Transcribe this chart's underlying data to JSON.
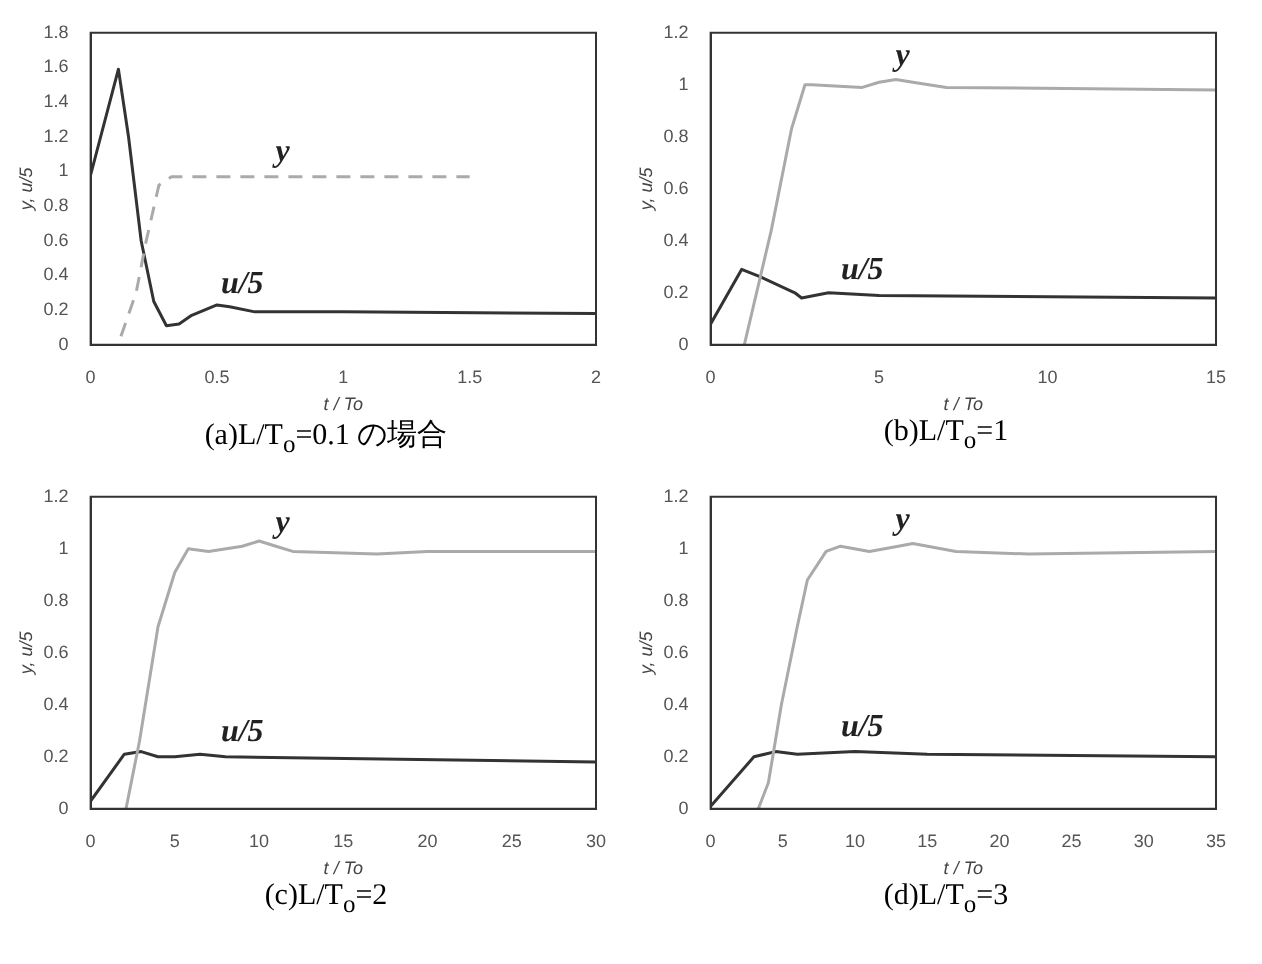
{
  "chart_data": [
    {
      "type": "line",
      "title": "(a)L/T$_{o}$=0.1 の場合",
      "xlabel": "t / To",
      "ylabel": "y, u/5",
      "xlim": [
        0,
        2
      ],
      "xticks": [
        0,
        0.5,
        1,
        1.5,
        2
      ],
      "ylim": [
        0,
        1.8
      ],
      "yticks": [
        0,
        0.2,
        0.4,
        0.6,
        0.8,
        1,
        1.2,
        1.4,
        1.6,
        1.8
      ],
      "legend": false,
      "grid": false,
      "marker": "none",
      "series": [
        {
          "name": "y",
          "color": "#aaaaaa",
          "line_style": "dashed",
          "x": [
            0.12,
            0.18,
            0.22,
            0.27,
            0.32,
            1.5
          ],
          "values": [
            0.05,
            0.3,
            0.6,
            0.92,
            0.97,
            0.97
          ]
        },
        {
          "name": "u/5",
          "color": "#333333",
          "line_style": "solid",
          "x": [
            0,
            0.11,
            0.15,
            0.2,
            0.25,
            0.3,
            0.35,
            0.4,
            0.5,
            0.55,
            0.65,
            1,
            2
          ],
          "values": [
            0.98,
            1.59,
            1.2,
            0.6,
            0.25,
            0.11,
            0.12,
            0.17,
            0.23,
            0.22,
            0.19,
            0.19,
            0.18
          ]
        }
      ]
    },
    {
      "type": "line",
      "title": "(b)L/T$_{o}$=1",
      "xlabel": "t / To",
      "ylabel": "y, u/5",
      "xlim": [
        0,
        15
      ],
      "xticks": [
        0,
        5,
        10,
        15
      ],
      "ylim": [
        0,
        1.2
      ],
      "yticks": [
        0,
        0.2,
        0.4,
        0.6,
        0.8,
        1,
        1.2
      ],
      "legend": false,
      "grid": false,
      "marker": "none",
      "series": [
        {
          "name": "y",
          "color": "#aaaaaa",
          "line_style": "solid",
          "x": [
            1,
            1.8,
            2.4,
            2.8,
            3,
            4.5,
            5,
            5.5,
            6,
            7,
            15
          ],
          "values": [
            0,
            0.44,
            0.83,
            1,
            1,
            0.99,
            1.01,
            1.02,
            1.01,
            0.99,
            0.98
          ]
        },
        {
          "name": "u/5",
          "color": "#333333",
          "line_style": "solid",
          "x": [
            0,
            0.92,
            1.5,
            2.5,
            2.7,
            3.5,
            5,
            15
          ],
          "values": [
            0.08,
            0.29,
            0.26,
            0.2,
            0.18,
            0.2,
            0.19,
            0.18
          ]
        }
      ]
    },
    {
      "type": "line",
      "title": "(c)L/T$_{o}$=2",
      "xlabel": "t / To",
      "ylabel": "y, u/5",
      "xlim": [
        0,
        30
      ],
      "xticks": [
        0,
        5,
        10,
        15,
        20,
        25,
        30
      ],
      "ylim": [
        0,
        1.2
      ],
      "yticks": [
        0,
        0.2,
        0.4,
        0.6,
        0.8,
        1,
        1.2
      ],
      "legend": false,
      "grid": false,
      "marker": "none",
      "series": [
        {
          "name": "y",
          "color": "#aaaaaa",
          "line_style": "solid",
          "x": [
            2.1,
            2.9,
            4,
            5,
            5.8,
            7,
            9,
            10,
            11,
            12,
            17,
            20,
            30
          ],
          "values": [
            0,
            0.26,
            0.7,
            0.91,
            1,
            0.99,
            1.01,
            1.03,
            1.01,
            0.99,
            0.98,
            0.99,
            0.99
          ]
        },
        {
          "name": "u/5",
          "color": "#333333",
          "line_style": "solid",
          "x": [
            0,
            2,
            3,
            4,
            5,
            6.5,
            8,
            30
          ],
          "values": [
            0.03,
            0.21,
            0.22,
            0.2,
            0.2,
            0.21,
            0.2,
            0.18
          ]
        }
      ]
    },
    {
      "type": "line",
      "title": "(d)L/T$_{o}$=3",
      "xlabel": "t / To",
      "ylabel": "y, u/5",
      "xlim": [
        0,
        35
      ],
      "xticks": [
        0,
        5,
        10,
        15,
        20,
        25,
        30,
        35
      ],
      "ylim": [
        0,
        1.2
      ],
      "yticks": [
        0,
        0.2,
        0.4,
        0.6,
        0.8,
        1,
        1.2
      ],
      "legend": false,
      "grid": false,
      "marker": "none",
      "series": [
        {
          "name": "y",
          "color": "#aaaaaa",
          "line_style": "solid",
          "x": [
            3.3,
            4,
            4.9,
            6,
            6.7,
            8,
            9,
            11,
            13,
            14,
            17,
            22,
            35
          ],
          "values": [
            0,
            0.1,
            0.4,
            0.7,
            0.88,
            0.99,
            1.01,
            0.99,
            1.01,
            1.02,
            0.99,
            0.98,
            0.99
          ]
        },
        {
          "name": "u/5",
          "color": "#333333",
          "line_style": "solid",
          "x": [
            0,
            3,
            4.5,
            6,
            10,
            15,
            35
          ],
          "values": [
            0.01,
            0.2,
            0.22,
            0.21,
            0.22,
            0.21,
            0.2
          ]
        }
      ]
    }
  ]
}
